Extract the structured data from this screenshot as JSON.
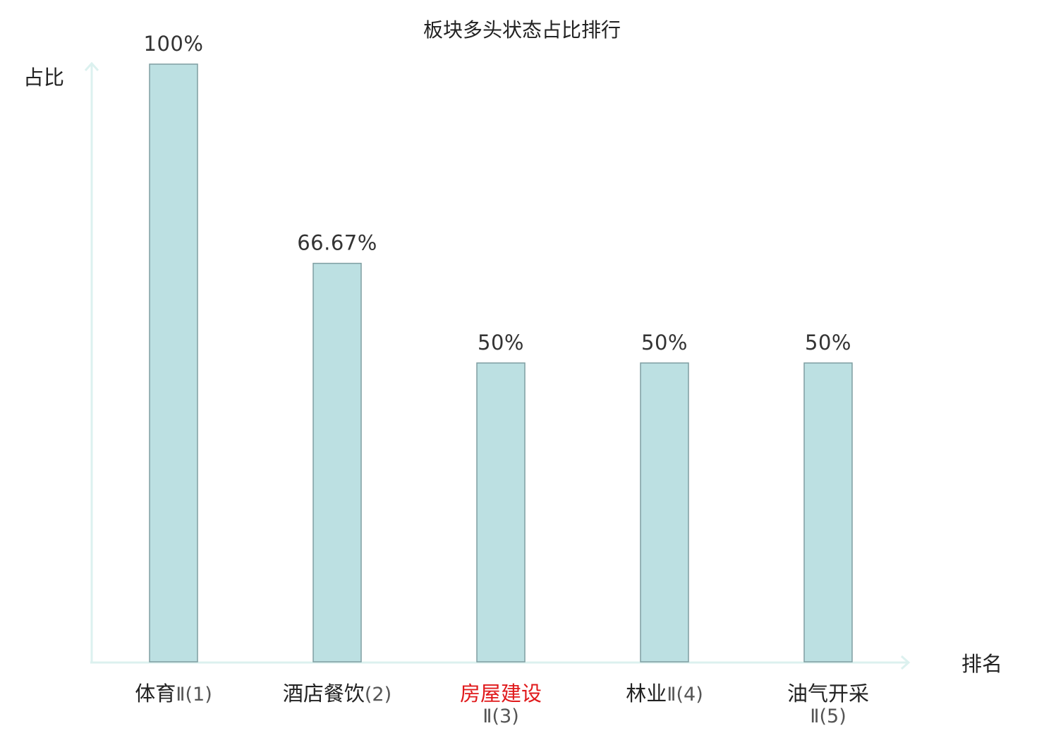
{
  "chart_data": {
    "type": "bar",
    "title": "板块多头状态占比排行",
    "ylabel": "占比",
    "xlabel": "排名",
    "ylim": [
      0,
      100
    ],
    "grid": false,
    "categories": [
      "体育Ⅱ(1)",
      "酒店餐饮(2)",
      "房屋建设Ⅱ(3)",
      "林业Ⅱ(4)",
      "油气开采Ⅱ(5)"
    ],
    "category_parts": [
      {
        "name": "体育",
        "suffix": "Ⅱ(1)",
        "wrap": false,
        "color": "#222222"
      },
      {
        "name": "酒店餐饮",
        "suffix": "(2)",
        "wrap": false,
        "color": "#222222"
      },
      {
        "name": "房屋建设",
        "suffix": "Ⅱ(3)",
        "wrap": true,
        "color": "#e0191b"
      },
      {
        "name": "林业",
        "suffix": "Ⅱ(4)",
        "wrap": false,
        "color": "#222222"
      },
      {
        "name": "油气开采",
        "suffix": "Ⅱ(5)",
        "wrap": true,
        "color": "#222222"
      }
    ],
    "values": [
      100,
      66.67,
      50,
      50,
      50
    ],
    "value_labels": [
      "100%",
      "66.67%",
      "50%",
      "50%",
      "50%"
    ],
    "colors": {
      "bar_fill": "#bce0e2",
      "bar_stroke": "#7e9ea1",
      "axis": "#dcf1ef",
      "highlight": "#e0191b"
    }
  }
}
